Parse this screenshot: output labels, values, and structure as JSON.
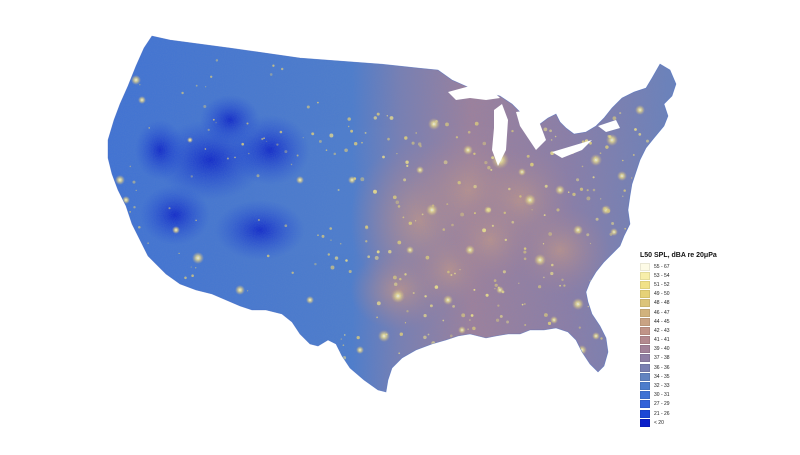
{
  "map": {
    "region": "Contiguous United States"
  },
  "legend": {
    "title": "L50 SPL, dBA re 20μPa",
    "items": [
      {
        "label": "55 - 67",
        "color": "#fdfbe6"
      },
      {
        "label": "53 - 54",
        "color": "#f7eeaa"
      },
      {
        "label": "51 - 52",
        "color": "#f1e187"
      },
      {
        "label": "49 - 50",
        "color": "#e6d277"
      },
      {
        "label": "48 - 48",
        "color": "#dcc47a"
      },
      {
        "label": "46 - 47",
        "color": "#d1b27d"
      },
      {
        "label": "44 - 45",
        "color": "#c9a384"
      },
      {
        "label": "42 - 43",
        "color": "#c09488"
      },
      {
        "label": "41 - 41",
        "color": "#b3898f"
      },
      {
        "label": "39 - 40",
        "color": "#a28198"
      },
      {
        "label": "37 - 38",
        "color": "#8f7ea4"
      },
      {
        "label": "36 - 36",
        "color": "#7a7fb1"
      },
      {
        "label": "34 - 35",
        "color": "#6283c0"
      },
      {
        "label": "32 - 33",
        "color": "#4d7dcc"
      },
      {
        "label": "30 - 31",
        "color": "#3f72d4"
      },
      {
        "label": "27 - 29",
        "color": "#3262d9"
      },
      {
        "label": "21 - 26",
        "color": "#1c47d6"
      },
      {
        "label": "< 20",
        "color": "#0a1fc9"
      }
    ]
  }
}
